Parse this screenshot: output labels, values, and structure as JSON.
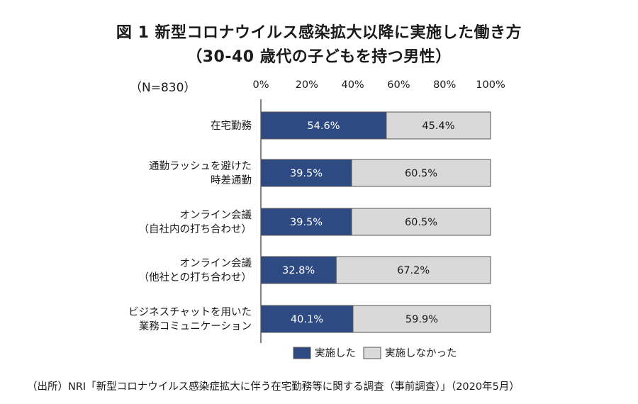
{
  "title_line1": "図 1 新型コロナウイルス感染拡大以降に実施した働き方",
  "title_line2": "（30-40 歳代の子どもを持つ男性）",
  "n_label": "（N=830）",
  "source": "（出所）NRI「新型コロナウイルス感染症拡大に伴う在宅勤務等に関する調査（事前調査）」（2020年5月）",
  "colors": {
    "implemented": "#2e4a82",
    "not_implemented": "#d9d9d9",
    "border": "#555555"
  },
  "chart_data": {
    "type": "bar",
    "orientation": "horizontal",
    "stacked": true,
    "title": "図 1 新型コロナウイルス感染拡大以降に実施した働き方",
    "xlim": [
      0,
      100
    ],
    "ticks": [
      "0%",
      "20%",
      "40%",
      "60%",
      "80%",
      "100%"
    ],
    "tick_values": [
      0,
      20,
      40,
      60,
      80,
      100
    ],
    "categories": [
      [
        "在宅勤務"
      ],
      [
        "通勤ラッシュを避けた",
        "時差通勤"
      ],
      [
        "オンライン会議",
        "（自社内の打ち合わせ）"
      ],
      [
        "オンライン会議",
        "（他社との打ち合わせ）"
      ],
      [
        "ビジネスチャットを用いた",
        "業務コミュニケーション"
      ]
    ],
    "series": [
      {
        "name": "実施した",
        "values": [
          54.6,
          39.5,
          39.5,
          32.8,
          40.1
        ],
        "labels": [
          "54.6%",
          "39.5%",
          "39.5%",
          "32.8%",
          "40.1%"
        ]
      },
      {
        "name": "実施しなかった",
        "values": [
          45.4,
          60.5,
          60.5,
          67.2,
          59.9
        ],
        "labels": [
          "45.4%",
          "60.5%",
          "60.5%",
          "67.2%",
          "59.9%"
        ]
      }
    ],
    "legend_position": "bottom"
  }
}
